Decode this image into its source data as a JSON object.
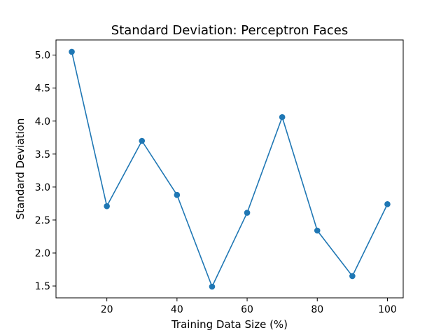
{
  "chart_data": {
    "type": "line",
    "title": "Standard Deviation: Perceptron Faces",
    "xlabel": "Training Data Size (%)",
    "ylabel": "Standard Deviation",
    "x": [
      10,
      20,
      30,
      40,
      50,
      60,
      70,
      80,
      90,
      100
    ],
    "series": [
      {
        "name": "Standard Deviation",
        "values": [
          5.05,
          2.71,
          3.7,
          2.88,
          1.49,
          2.61,
          4.06,
          2.34,
          1.65,
          2.74
        ]
      }
    ],
    "xlim": [
      5.5,
      104.5
    ],
    "ylim": [
      1.32,
      5.23
    ],
    "xticks": [
      20,
      40,
      60,
      80,
      100
    ],
    "yticks": [
      1.5,
      2.0,
      2.5,
      3.0,
      3.5,
      4.0,
      4.5,
      5.0
    ],
    "xtick_labels": [
      "20",
      "40",
      "60",
      "80",
      "100"
    ],
    "ytick_labels": [
      "1.5",
      "2.0",
      "2.5",
      "3.0",
      "3.5",
      "4.0",
      "4.5",
      "5.0"
    ],
    "grid": false,
    "line_color": "#1f77b4"
  }
}
